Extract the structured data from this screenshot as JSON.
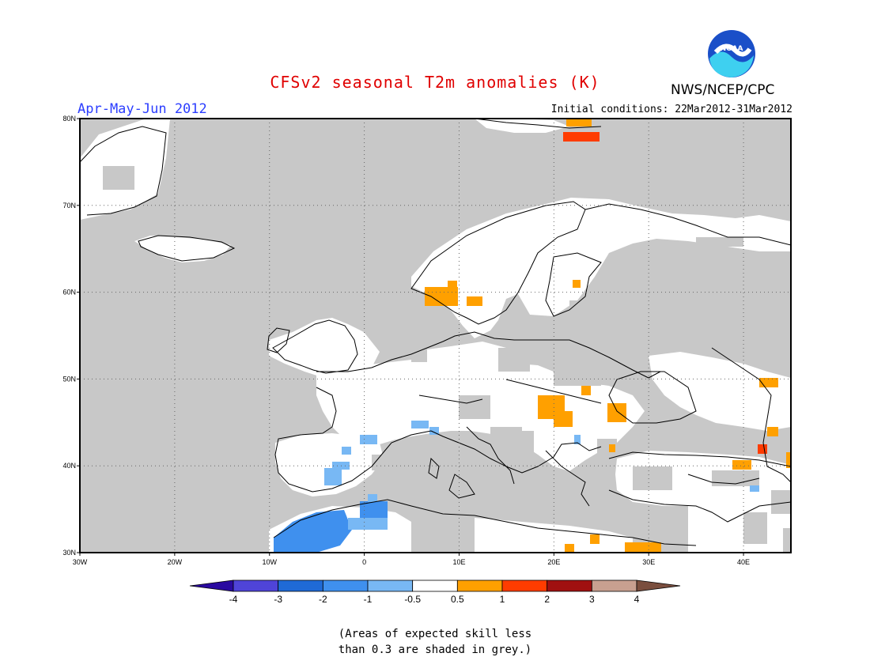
{
  "title": "CFSv2 seasonal T2m anomalies (K)",
  "agency": "NWS/NCEP/CPC",
  "logo_text": "NOAA",
  "season": "Apr-May-Jun 2012",
  "initial_conditions": "Initial conditions: 22Mar2012-31Mar2012",
  "map": {
    "lon_range": [
      -30,
      45
    ],
    "lat_range": [
      30,
      80
    ],
    "lon_ticks": [
      {
        "value": -30,
        "label": "30W"
      },
      {
        "value": -20,
        "label": "20W"
      },
      {
        "value": -10,
        "label": "10W"
      },
      {
        "value": 0,
        "label": "0"
      },
      {
        "value": 10,
        "label": "10E"
      },
      {
        "value": 20,
        "label": "20E"
      },
      {
        "value": 30,
        "label": "30E"
      },
      {
        "value": 40,
        "label": "40E"
      }
    ],
    "lat_ticks": [
      {
        "value": 30,
        "label": "30N"
      },
      {
        "value": 40,
        "label": "40N"
      },
      {
        "value": 50,
        "label": "50N"
      },
      {
        "value": 60,
        "label": "60N"
      },
      {
        "value": 70,
        "label": "70N"
      },
      {
        "value": 80,
        "label": "80N"
      }
    ],
    "colors": {
      "low_skill_grey": "#c8c8c8",
      "neutral_white": "#ffffff",
      "coast_line": "#000000"
    }
  },
  "colorbar": {
    "colors": [
      "#2a0aa0",
      "#4f44d8",
      "#1f6ad6",
      "#3f90ee",
      "#78b8f4",
      "#ffffff",
      "#ffa000",
      "#ff3c00",
      "#a01010",
      "#c8a090",
      "#7a4e3e"
    ],
    "labels": [
      "-4",
      "-3",
      "-2",
      "-1",
      "-0.5",
      "0.5",
      "1",
      "2",
      "3",
      "4"
    ]
  },
  "skill_note_line1": "(Areas of expected skill less",
  "skill_note_line2": "than 0.3 are shaded in grey.)"
}
